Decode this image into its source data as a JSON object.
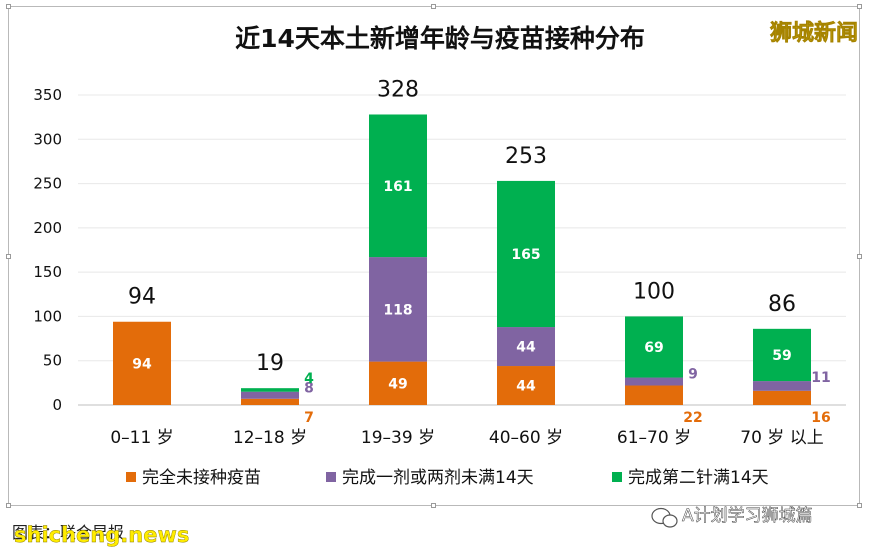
{
  "chart_data": {
    "type": "bar",
    "stacked": true,
    "title": "近14天本土新增年龄与疫苗接种分布",
    "categories": [
      "0–11 岁",
      "12–18 岁",
      "19–39 岁",
      "40–60 岁",
      "61–70 岁",
      "70 岁 以上"
    ],
    "series": [
      {
        "name": "完全未接种疫苗",
        "color": "#e36c0a",
        "values": [
          94,
          7,
          49,
          44,
          22,
          16
        ]
      },
      {
        "name": "完成一剂或两剂未满14天",
        "color": "#8064a2",
        "values": [
          0,
          8,
          118,
          44,
          9,
          11
        ]
      },
      {
        "name": "完成第二针满14天",
        "color": "#00b050",
        "values": [
          0,
          4,
          161,
          165,
          69,
          59
        ]
      }
    ],
    "totals": [
      94,
      19,
      328,
      253,
      100,
      86
    ],
    "ylim": [
      0,
      350
    ],
    "yticks": [
      0,
      50,
      100,
      150,
      200,
      250,
      300,
      350
    ],
    "grid": true,
    "legend": "bottom"
  },
  "watermarks": {
    "top_right": "狮城新闻",
    "bottom_left_overlay": "shicheng.news",
    "bottom_left": "图表：联合早报",
    "bottom_right": "A计划学习狮城篇"
  }
}
